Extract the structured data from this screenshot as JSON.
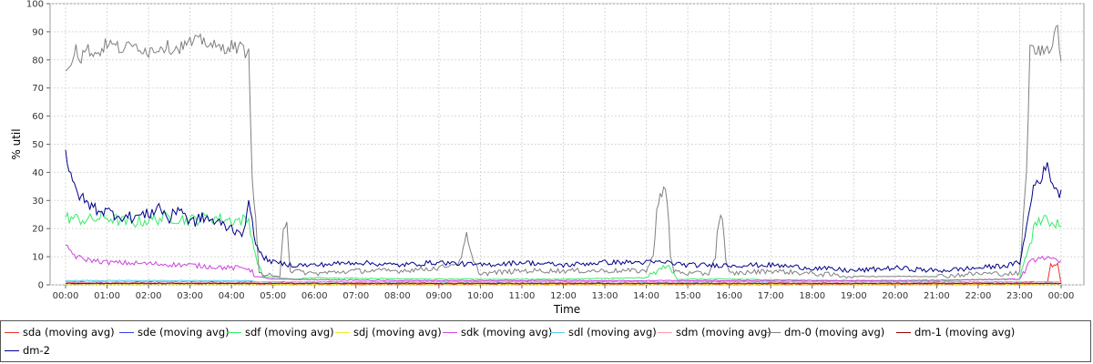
{
  "chart_data": {
    "type": "line",
    "title": "",
    "xlabel": "Time",
    "ylabel": "% util",
    "ylim": [
      0,
      100
    ],
    "yticks": [
      "0",
      "10",
      "20",
      "30",
      "40",
      "50",
      "60",
      "70",
      "80",
      "90",
      "100"
    ],
    "xlim": [
      "00:00",
      "24:00"
    ],
    "xticks": [
      "00:00",
      "01:00",
      "02:00",
      "03:00",
      "04:00",
      "05:00",
      "06:00",
      "07:00",
      "08:00",
      "09:00",
      "10:00",
      "11:00",
      "12:00",
      "13:00",
      "14:00",
      "15:00",
      "16:00",
      "17:00",
      "18:00",
      "19:00",
      "20:00",
      "21:00",
      "22:00",
      "23:00",
      "00:00"
    ],
    "grid": true,
    "legend_position": "bottom",
    "series": [
      {
        "name": "sda (moving avg)",
        "color": "#e8332c",
        "points": [
          [
            "00:00",
            0.5
          ],
          [
            "04:30",
            0.5
          ],
          [
            "04:40",
            0.2
          ],
          [
            "23:00",
            0.2
          ],
          [
            "23:20",
            0.3
          ],
          [
            "23:40",
            0.5
          ],
          [
            "23:45",
            7
          ],
          [
            "23:55",
            7
          ],
          [
            "24:00",
            0.5
          ]
        ]
      },
      {
        "name": "sde (moving avg)",
        "color": "#3344dd",
        "points": [
          [
            "00:00",
            1
          ],
          [
            "24:00",
            1
          ]
        ]
      },
      {
        "name": "sdf (moving avg)",
        "color": "#33ee66",
        "points": [
          [
            "00:00",
            24
          ],
          [
            "00:30",
            23
          ],
          [
            "01:00",
            24
          ],
          [
            "01:30",
            22
          ],
          [
            "02:00",
            23
          ],
          [
            "02:30",
            24
          ],
          [
            "03:00",
            23
          ],
          [
            "03:30",
            24
          ],
          [
            "04:00",
            23
          ],
          [
            "04:25",
            23
          ],
          [
            "04:35",
            10
          ],
          [
            "04:45",
            3
          ],
          [
            "05:30",
            2
          ],
          [
            "06:00",
            2.5
          ],
          [
            "09:00",
            2
          ],
          [
            "12:00",
            2
          ],
          [
            "14:00",
            2.5
          ],
          [
            "14:30",
            7
          ],
          [
            "14:45",
            2
          ],
          [
            "16:00",
            2
          ],
          [
            "19:00",
            1.5
          ],
          [
            "21:00",
            1.5
          ],
          [
            "22:30",
            2
          ],
          [
            "23:00",
            2
          ],
          [
            "23:15",
            15
          ],
          [
            "23:25",
            23
          ],
          [
            "24:00",
            22
          ]
        ]
      },
      {
        "name": "sdj (moving avg)",
        "color": "#eeee22",
        "points": [
          [
            "00:00",
            0.3
          ],
          [
            "24:00",
            0.3
          ]
        ]
      },
      {
        "name": "sdk (moving avg)",
        "color": "#cc44dd",
        "points": [
          [
            "00:00",
            14
          ],
          [
            "00:15",
            10
          ],
          [
            "00:30",
            9
          ],
          [
            "01:00",
            8
          ],
          [
            "02:00",
            7.5
          ],
          [
            "03:00",
            7
          ],
          [
            "04:00",
            6
          ],
          [
            "04:25",
            6
          ],
          [
            "04:35",
            3
          ],
          [
            "05:00",
            2
          ],
          [
            "08:00",
            1.5
          ],
          [
            "12:00",
            1.5
          ],
          [
            "16:00",
            1.5
          ],
          [
            "20:00",
            1.5
          ],
          [
            "23:00",
            2
          ],
          [
            "23:15",
            8
          ],
          [
            "23:30",
            10
          ],
          [
            "24:00",
            8
          ]
        ]
      },
      {
        "name": "sdl (moving avg)",
        "color": "#55ccee",
        "points": [
          [
            "00:00",
            1.5
          ],
          [
            "04:30",
            1.5
          ],
          [
            "04:40",
            1
          ],
          [
            "24:00",
            1
          ]
        ]
      },
      {
        "name": "sdm (moving avg)",
        "color": "#ff99aa",
        "points": [
          [
            "00:00",
            1
          ],
          [
            "24:00",
            1
          ]
        ]
      },
      {
        "name": "dm-0 (moving avg)",
        "color": "#808080",
        "points": [
          [
            "00:00",
            76
          ],
          [
            "00:10",
            81
          ],
          [
            "00:15",
            86
          ],
          [
            "00:20",
            80
          ],
          [
            "00:30",
            84
          ],
          [
            "00:45",
            82
          ],
          [
            "01:00",
            86
          ],
          [
            "01:20",
            84
          ],
          [
            "01:45",
            85
          ],
          [
            "02:00",
            83
          ],
          [
            "02:20",
            85
          ],
          [
            "02:40",
            84
          ],
          [
            "03:00",
            86
          ],
          [
            "03:20",
            87
          ],
          [
            "03:40",
            84
          ],
          [
            "04:00",
            85
          ],
          [
            "04:15",
            84
          ],
          [
            "04:25",
            82
          ],
          [
            "04:30",
            40
          ],
          [
            "04:40",
            4
          ],
          [
            "05:00",
            3
          ],
          [
            "05:10",
            3
          ],
          [
            "05:15",
            22
          ],
          [
            "05:20",
            22
          ],
          [
            "05:25",
            5
          ],
          [
            "06:00",
            4
          ],
          [
            "07:00",
            5
          ],
          [
            "08:00",
            5
          ],
          [
            "09:00",
            6
          ],
          [
            "09:30",
            8
          ],
          [
            "09:40",
            17
          ],
          [
            "09:50",
            8
          ],
          [
            "10:00",
            4
          ],
          [
            "11:00",
            5
          ],
          [
            "12:00",
            5
          ],
          [
            "13:00",
            5
          ],
          [
            "14:00",
            5
          ],
          [
            "14:10",
            10
          ],
          [
            "14:15",
            28
          ],
          [
            "14:25",
            35
          ],
          [
            "14:30",
            30
          ],
          [
            "14:35",
            10
          ],
          [
            "14:40",
            5
          ],
          [
            "15:00",
            4
          ],
          [
            "15:30",
            4
          ],
          [
            "15:40",
            10
          ],
          [
            "15:45",
            24
          ],
          [
            "15:50",
            24
          ],
          [
            "15:55",
            8
          ],
          [
            "16:00",
            4
          ],
          [
            "17:00",
            5
          ],
          [
            "18:00",
            4
          ],
          [
            "19:00",
            3
          ],
          [
            "20:00",
            3
          ],
          [
            "21:00",
            3
          ],
          [
            "22:00",
            4
          ],
          [
            "22:30",
            4
          ],
          [
            "23:00",
            4
          ],
          [
            "23:10",
            40
          ],
          [
            "23:15",
            84
          ],
          [
            "23:30",
            83
          ],
          [
            "23:45",
            85
          ],
          [
            "23:55",
            93
          ],
          [
            "24:00",
            78
          ]
        ]
      },
      {
        "name": "dm-1 (moving avg)",
        "color": "#990000",
        "points": [
          [
            "00:00",
            0.5
          ],
          [
            "24:00",
            0.5
          ]
        ]
      },
      {
        "name": "dm-2",
        "color": "#000088",
        "points": [
          [
            "00:00",
            48
          ],
          [
            "00:05",
            40
          ],
          [
            "00:10",
            36
          ],
          [
            "00:20",
            32
          ],
          [
            "00:30",
            29
          ],
          [
            "00:45",
            27
          ],
          [
            "01:00",
            26
          ],
          [
            "01:30",
            24
          ],
          [
            "02:00",
            25
          ],
          [
            "02:15",
            28
          ],
          [
            "02:30",
            23
          ],
          [
            "02:45",
            28
          ],
          [
            "03:00",
            22
          ],
          [
            "03:20",
            24
          ],
          [
            "03:40",
            22
          ],
          [
            "04:00",
            20
          ],
          [
            "04:20",
            19
          ],
          [
            "04:25",
            30
          ],
          [
            "04:30",
            25
          ],
          [
            "04:35",
            14
          ],
          [
            "04:45",
            10
          ],
          [
            "05:00",
            8
          ],
          [
            "05:30",
            7
          ],
          [
            "06:00",
            7
          ],
          [
            "07:00",
            8
          ],
          [
            "08:00",
            7
          ],
          [
            "09:00",
            8
          ],
          [
            "10:00",
            7
          ],
          [
            "11:00",
            8
          ],
          [
            "12:00",
            7
          ],
          [
            "13:00",
            8
          ],
          [
            "14:00",
            8
          ],
          [
            "14:30",
            8
          ],
          [
            "15:00",
            7
          ],
          [
            "16:00",
            7
          ],
          [
            "17:00",
            7
          ],
          [
            "18:00",
            6
          ],
          [
            "19:00",
            5
          ],
          [
            "20:00",
            6
          ],
          [
            "21:00",
            5
          ],
          [
            "22:00",
            6
          ],
          [
            "22:45",
            7
          ],
          [
            "23:00",
            8
          ],
          [
            "23:10",
            20
          ],
          [
            "23:20",
            35
          ],
          [
            "23:30",
            38
          ],
          [
            "23:40",
            42
          ],
          [
            "23:50",
            35
          ],
          [
            "24:00",
            32
          ]
        ]
      }
    ]
  }
}
